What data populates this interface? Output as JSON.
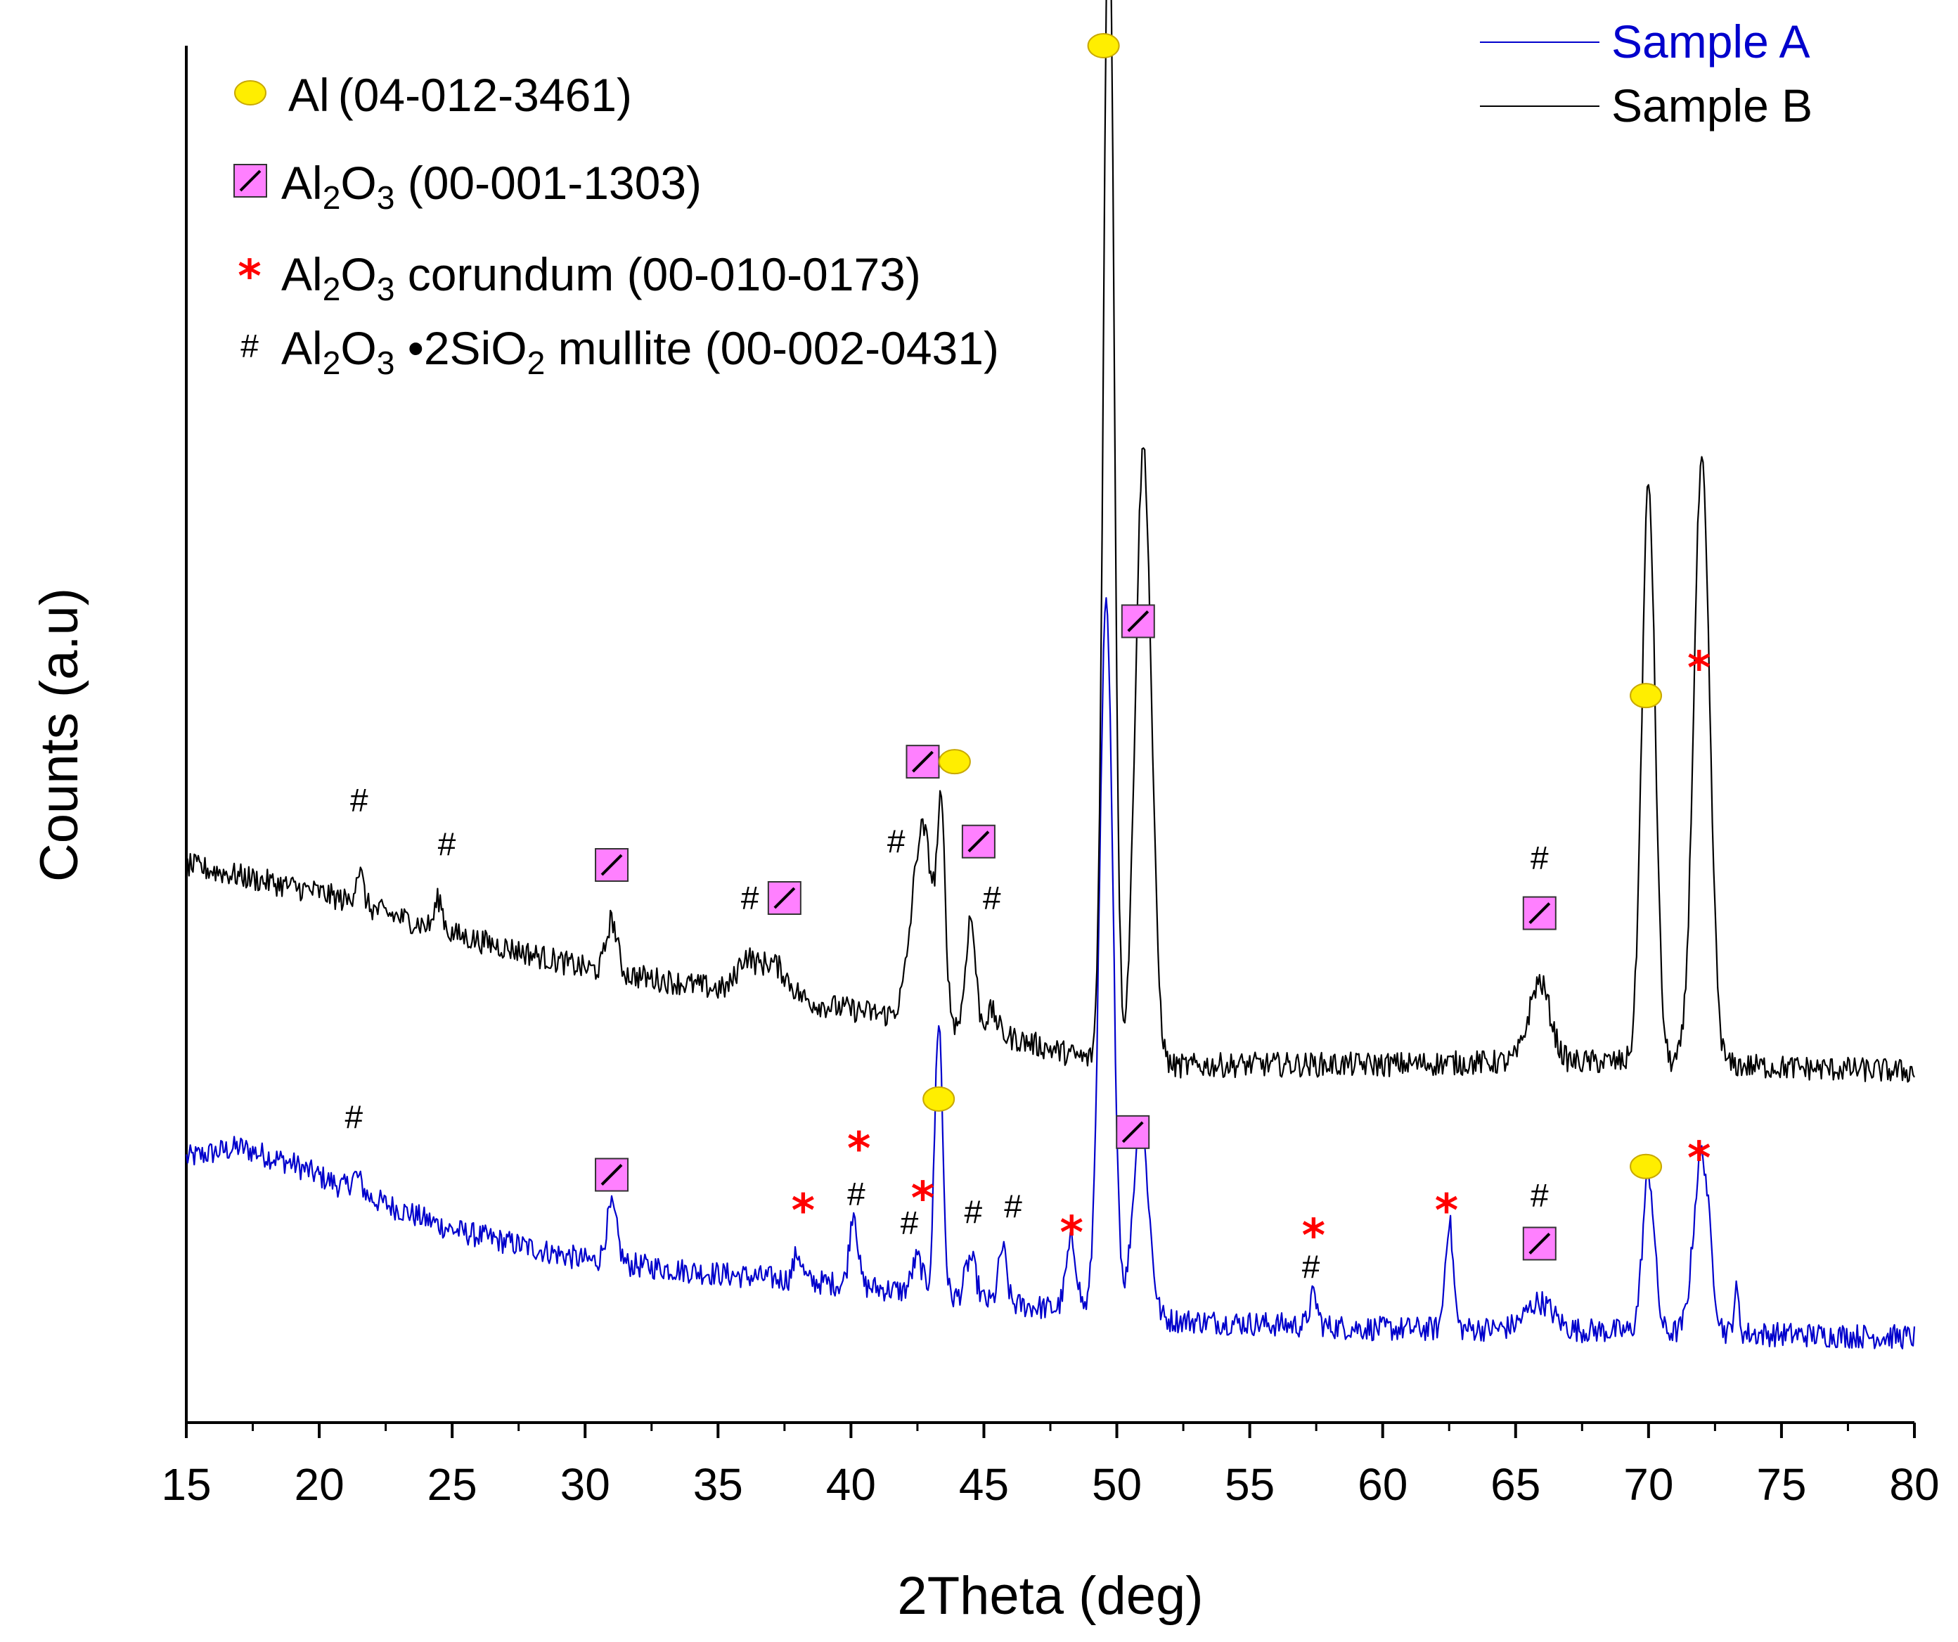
{
  "chart_data": {
    "type": "line",
    "xlabel": "2Theta (deg)",
    "ylabel": "Counts (a.u)",
    "xlim": [
      15,
      80
    ],
    "x_ticks": [
      15,
      20,
      25,
      30,
      35,
      40,
      45,
      50,
      55,
      60,
      65,
      70,
      75,
      80
    ],
    "ylim": [
      0,
      1000
    ],
    "y_ticks_shown": false,
    "series_legend": [
      {
        "name": "Sample A",
        "color": "#0000cc"
      },
      {
        "name": "Sample B",
        "color": "#000000"
      }
    ],
    "phase_legend": [
      {
        "symbol": "circle",
        "color": "#ffee00",
        "phase_html": "Al",
        "ref": "(04-012-3461)"
      },
      {
        "symbol": "square",
        "color": "#ff80ff",
        "phase_html": "Al<tspan class=\"sub\" dy=\"14\">2</tspan><tspan dy=\"-14\">O</tspan><tspan class=\"sub\" dy=\"14\">3</tspan><tspan dy=\"-14\"> </tspan>",
        "ref": "(00-001-1303)"
      },
      {
        "symbol": "star",
        "color": "#ff0000",
        "phase_html": "Al<tspan class=\"sub\" dy=\"14\">2</tspan><tspan dy=\"-14\">O</tspan><tspan class=\"sub\" dy=\"14\">3</tspan><tspan dy=\"-14\"> corundum </tspan>",
        "ref": "(00-010-0173)"
      },
      {
        "symbol": "hash",
        "color": "#000000",
        "phase_html": "Al<tspan class=\"sub\" dy=\"14\">2</tspan><tspan dy=\"-14\">O</tspan><tspan class=\"sub\" dy=\"14\">3</tspan><tspan dy=\"-14\"> •2SiO</tspan><tspan class=\"sub\" dy=\"14\">2</tspan><tspan dy=\"-14\"> mullite </tspan>",
        "ref": "(00-002-0431)"
      }
    ],
    "sample_B": {
      "baseline": [
        [
          15,
          405
        ],
        [
          20,
          385
        ],
        [
          25,
          355
        ],
        [
          30,
          330
        ],
        [
          35,
          315
        ],
        [
          40,
          300
        ],
        [
          45,
          285
        ],
        [
          50,
          258
        ],
        [
          55,
          260
        ],
        [
          60,
          260
        ],
        [
          65,
          262
        ],
        [
          70,
          262
        ],
        [
          75,
          258
        ],
        [
          80,
          255
        ]
      ],
      "peaks": [
        [
          21.5,
          25,
          0.15
        ],
        [
          24.5,
          22,
          0.15
        ],
        [
          31.0,
          38,
          0.2
        ],
        [
          36.0,
          20,
          0.3
        ],
        [
          37.0,
          25,
          0.6
        ],
        [
          42.7,
          140,
          0.4
        ],
        [
          43.4,
          130,
          0.15
        ],
        [
          44.5,
          80,
          0.18
        ],
        [
          45.3,
          15,
          0.2
        ],
        [
          49.7,
          870,
          0.2
        ],
        [
          51.0,
          450,
          0.3
        ],
        [
          65.9,
          58,
          0.4
        ],
        [
          70.0,
          420,
          0.25
        ],
        [
          72.0,
          435,
          0.3
        ]
      ],
      "markers": [
        {
          "type": "hash",
          "x": 21.5,
          "y": 452
        },
        {
          "type": "hash",
          "x": 24.8,
          "y": 420
        },
        {
          "type": "square",
          "x": 31.0,
          "y": 405
        },
        {
          "type": "hash",
          "x": 36.2,
          "y": 381
        },
        {
          "type": "square",
          "x": 37.5,
          "y": 381
        },
        {
          "type": "hash",
          "x": 41.7,
          "y": 422
        },
        {
          "type": "square",
          "x": 42.7,
          "y": 480
        },
        {
          "type": "circle",
          "x": 43.9,
          "y": 480
        },
        {
          "type": "square",
          "x": 44.8,
          "y": 422
        },
        {
          "type": "hash",
          "x": 45.3,
          "y": 381
        },
        {
          "type": "circle",
          "x": 49.5,
          "y": 1000
        },
        {
          "type": "square",
          "x": 50.8,
          "y": 582
        },
        {
          "type": "hash",
          "x": 65.9,
          "y": 410
        },
        {
          "type": "square",
          "x": 65.9,
          "y": 370
        },
        {
          "type": "circle",
          "x": 69.9,
          "y": 528
        },
        {
          "type": "star",
          "x": 71.9,
          "y": 551
        }
      ]
    },
    "sample_A": {
      "baseline": [
        [
          15,
          192
        ],
        [
          17,
          200
        ],
        [
          19,
          188
        ],
        [
          21,
          170
        ],
        [
          25,
          140
        ],
        [
          30,
          118
        ],
        [
          35,
          108
        ],
        [
          40,
          100
        ],
        [
          45,
          88
        ],
        [
          48,
          82
        ],
        [
          50,
          76
        ],
        [
          55,
          72
        ],
        [
          60,
          68
        ],
        [
          65,
          68
        ],
        [
          70,
          66
        ],
        [
          75,
          64
        ],
        [
          80,
          62
        ]
      ],
      "peaks": [
        [
          21.4,
          12,
          0.2
        ],
        [
          31.0,
          40,
          0.2
        ],
        [
          38.0,
          20,
          0.15
        ],
        [
          40.1,
          55,
          0.15
        ],
        [
          42.5,
          25,
          0.2
        ],
        [
          43.3,
          200,
          0.15
        ],
        [
          44.5,
          30,
          0.2
        ],
        [
          45.7,
          40,
          0.15
        ],
        [
          48.3,
          50,
          0.2
        ],
        [
          49.6,
          515,
          0.25
        ],
        [
          50.9,
          140,
          0.3
        ],
        [
          57.4,
          22,
          0.15
        ],
        [
          62.5,
          78,
          0.15
        ],
        [
          65.9,
          20,
          0.5
        ],
        [
          70.0,
          115,
          0.22
        ],
        [
          72.0,
          130,
          0.3
        ],
        [
          73.3,
          30,
          0.1
        ]
      ],
      "markers": [
        {
          "type": "hash",
          "x": 21.3,
          "y": 222
        },
        {
          "type": "square",
          "x": 31.0,
          "y": 180
        },
        {
          "type": "star",
          "x": 38.2,
          "y": 157
        },
        {
          "type": "star",
          "x": 40.3,
          "y": 202
        },
        {
          "type": "hash",
          "x": 40.2,
          "y": 166
        },
        {
          "type": "hash",
          "x": 42.2,
          "y": 145
        },
        {
          "type": "star",
          "x": 42.7,
          "y": 166
        },
        {
          "type": "circle",
          "x": 43.3,
          "y": 235
        },
        {
          "type": "hash",
          "x": 44.6,
          "y": 153
        },
        {
          "type": "hash",
          "x": 46.1,
          "y": 157
        },
        {
          "type": "star",
          "x": 48.3,
          "y": 141
        },
        {
          "type": "square",
          "x": 50.6,
          "y": 211
        },
        {
          "type": "star",
          "x": 57.4,
          "y": 139
        },
        {
          "type": "hash",
          "x": 57.3,
          "y": 113
        },
        {
          "type": "star",
          "x": 62.4,
          "y": 157
        },
        {
          "type": "hash",
          "x": 65.9,
          "y": 165
        },
        {
          "type": "square",
          "x": 65.9,
          "y": 130
        },
        {
          "type": "circle",
          "x": 69.9,
          "y": 186
        },
        {
          "type": "star",
          "x": 71.9,
          "y": 195
        }
      ]
    }
  },
  "marker_glyphs": {
    "hash": "#",
    "star": "*"
  }
}
